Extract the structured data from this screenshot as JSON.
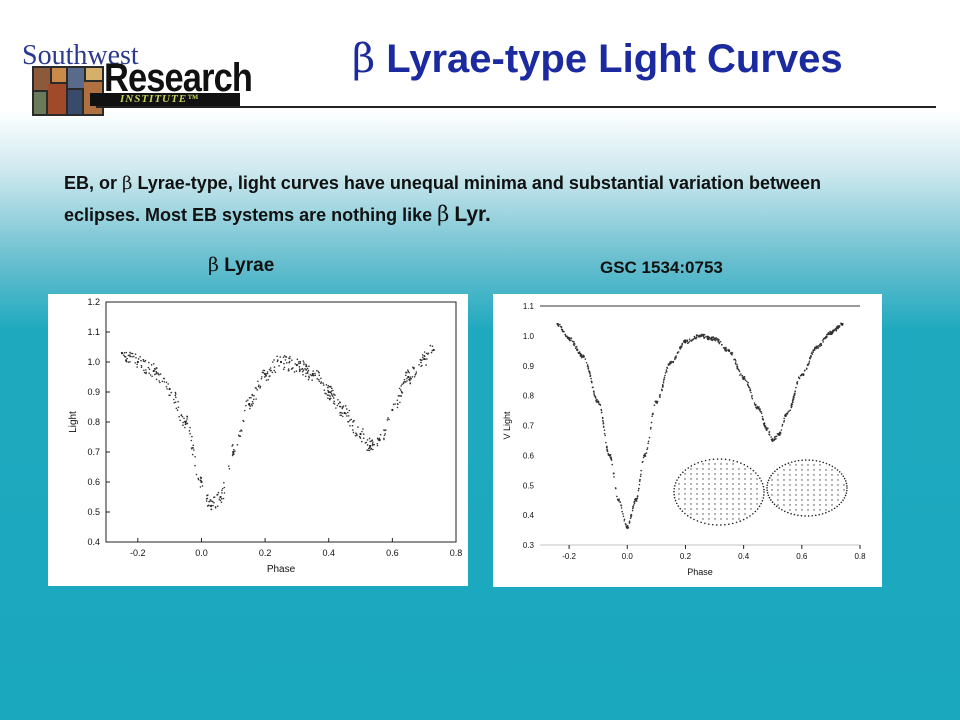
{
  "logo": {
    "line1": "Southwest",
    "line2": "Research",
    "line3": "INSTITUTE™"
  },
  "slide": {
    "title_symbol": "β",
    "title": "Lyrae-type Light Curves",
    "paragraph_pre": "EB, or",
    "paragraph_symbol1": "β",
    "paragraph_mid": "Lyrae-type, light curves have unequal minima and substantial variation between eclipses. Most EB systems are nothing like",
    "paragraph_symbol2": "β",
    "paragraph_end": "Lyr.",
    "caption_left_symbol": "β",
    "caption_left": "Lyrae",
    "caption_right": "GSC 1534:0753"
  },
  "colors": {
    "title": "#1b2a9e",
    "background_top": "#ffffff",
    "background_bottom": "#1aa8be",
    "points": "#222222"
  },
  "chart_data": [
    {
      "type": "scatter",
      "title": "",
      "xlabel": "Phase",
      "ylabel": "Light",
      "xlim": [
        -0.3,
        0.8
      ],
      "ylim": [
        0.4,
        1.2
      ],
      "xticks": [
        "-0.2",
        "0.0",
        "0.2",
        "0.4",
        "0.6",
        "0.8"
      ],
      "xtick_values": [
        -0.2,
        0.0,
        0.2,
        0.4,
        0.6,
        0.8
      ],
      "yticks": [
        "0.4",
        "0.5",
        "0.6",
        "0.7",
        "0.8",
        "0.9",
        "1.0",
        "1.1",
        "1.2"
      ],
      "ytick_values": [
        0.4,
        0.5,
        0.6,
        0.7,
        0.8,
        0.9,
        1.0,
        1.1,
        1.2
      ],
      "x": [
        -0.25,
        -0.2,
        -0.15,
        -0.1,
        -0.05,
        0.0,
        0.03,
        0.06,
        0.1,
        0.15,
        0.2,
        0.25,
        0.3,
        0.35,
        0.4,
        0.45,
        0.5,
        0.53,
        0.56,
        0.6,
        0.65,
        0.7,
        0.73
      ],
      "y": [
        1.03,
        1.0,
        0.97,
        0.91,
        0.8,
        0.6,
        0.52,
        0.55,
        0.7,
        0.86,
        0.96,
        1.0,
        0.99,
        0.96,
        0.9,
        0.83,
        0.76,
        0.72,
        0.74,
        0.84,
        0.95,
        1.01,
        1.04
      ],
      "scatter_noise": 0.025,
      "grid": false
    },
    {
      "type": "scatter",
      "title": "",
      "xlabel": "Phase",
      "ylabel": "V Light",
      "xlim": [
        -0.3,
        0.8
      ],
      "ylim": [
        0.3,
        1.1
      ],
      "xticks": [
        "-0.2",
        "0.0",
        "0.2",
        "0.4",
        "0.6",
        "0.8"
      ],
      "xtick_values": [
        -0.2,
        0.0,
        0.2,
        0.4,
        0.6,
        0.8
      ],
      "yticks": [
        "0.3",
        "0.4",
        "0.5",
        "0.6",
        "0.7",
        "0.8",
        "0.9",
        "1.0",
        "1.1"
      ],
      "ytick_values": [
        0.3,
        0.4,
        0.5,
        0.6,
        0.7,
        0.8,
        0.9,
        1.0,
        1.1
      ],
      "x": [
        -0.24,
        -0.2,
        -0.15,
        -0.1,
        -0.06,
        -0.03,
        0.0,
        0.03,
        0.06,
        0.1,
        0.15,
        0.2,
        0.25,
        0.3,
        0.35,
        0.4,
        0.45,
        0.48,
        0.5,
        0.52,
        0.55,
        0.6,
        0.65,
        0.7,
        0.74
      ],
      "y": [
        1.04,
        0.99,
        0.93,
        0.78,
        0.6,
        0.45,
        0.36,
        0.45,
        0.6,
        0.78,
        0.91,
        0.98,
        1.0,
        0.99,
        0.95,
        0.86,
        0.76,
        0.69,
        0.65,
        0.67,
        0.74,
        0.87,
        0.96,
        1.01,
        1.04
      ],
      "scatter_noise": 0.006,
      "grid": false,
      "reference_line_y": 1.1
    }
  ]
}
